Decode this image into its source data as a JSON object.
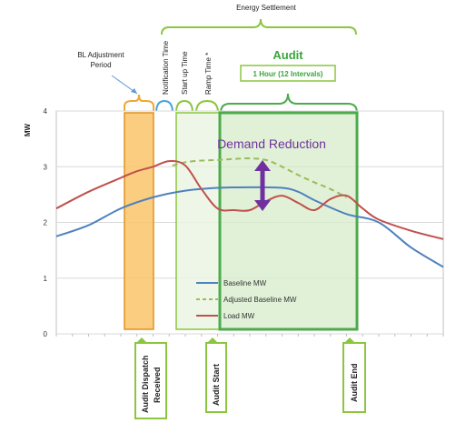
{
  "annotations": {
    "energy_settlement": "Energy Settlement",
    "audit_title": "Audit",
    "audit_duration": "1 Hour (12 Intervals)",
    "bl_adjustment_line1": "BL Adjustment",
    "bl_adjustment_line2": "Period",
    "notification_time": "Notification Time",
    "startup_time": "Start up Time",
    "ramp_time": "Ramp Time *",
    "demand_reduction": "Demand Reduction",
    "dispatch_line1": "Audit Dispatch",
    "dispatch_line2": "Received",
    "audit_start": "Audit Start",
    "audit_end": "Audit End"
  },
  "colors": {
    "baseline": "#4f81bd",
    "adjusted_baseline": "#9bbb59",
    "load": "#c0504d",
    "audit_fill": "#d7eccb",
    "audit_border": "#4dab4d",
    "bl_adjust_fill": "#f9c46a",
    "bl_adjust_border": "#e0941f",
    "demand_arrow": "#7030a0",
    "callout_border": "#8cc63f"
  },
  "chart_data": {
    "type": "line",
    "title": "",
    "ylabel": "MW",
    "xlabel": "",
    "ylim": [
      0,
      4
    ],
    "yticks": [
      "0",
      "1",
      "2",
      "3",
      "4"
    ],
    "xlim": [
      0,
      24
    ],
    "grid": true,
    "legend_position": "lower-center",
    "series": [
      {
        "name": "Baseline MW",
        "style": "solid",
        "x": [
          0,
          2,
          4,
          6,
          8,
          10,
          12,
          14,
          15,
          16,
          18,
          20,
          22,
          24
        ],
        "y": [
          1.75,
          1.95,
          2.25,
          2.45,
          2.57,
          2.62,
          2.63,
          2.62,
          2.55,
          2.4,
          2.15,
          2.0,
          1.55,
          1.2
        ]
      },
      {
        "name": "Adjusted Baseline MW",
        "style": "dashed",
        "x": [
          7.2,
          8,
          9,
          10,
          11,
          12,
          13,
          14,
          15,
          16,
          17,
          18
        ],
        "y": [
          3.02,
          3.08,
          3.11,
          3.12,
          3.14,
          3.15,
          3.12,
          3.0,
          2.85,
          2.72,
          2.6,
          2.45
        ]
      },
      {
        "name": "Load MW",
        "style": "solid",
        "x": [
          0,
          2,
          4,
          5,
          6,
          7,
          8,
          9,
          10,
          11,
          12,
          13,
          14,
          15,
          16,
          17,
          18,
          19,
          20,
          22,
          24
        ],
        "y": [
          2.25,
          2.55,
          2.8,
          2.92,
          3.0,
          3.1,
          3.02,
          2.6,
          2.25,
          2.22,
          2.22,
          2.38,
          2.48,
          2.35,
          2.22,
          2.42,
          2.48,
          2.25,
          2.05,
          1.85,
          1.7
        ]
      }
    ]
  }
}
